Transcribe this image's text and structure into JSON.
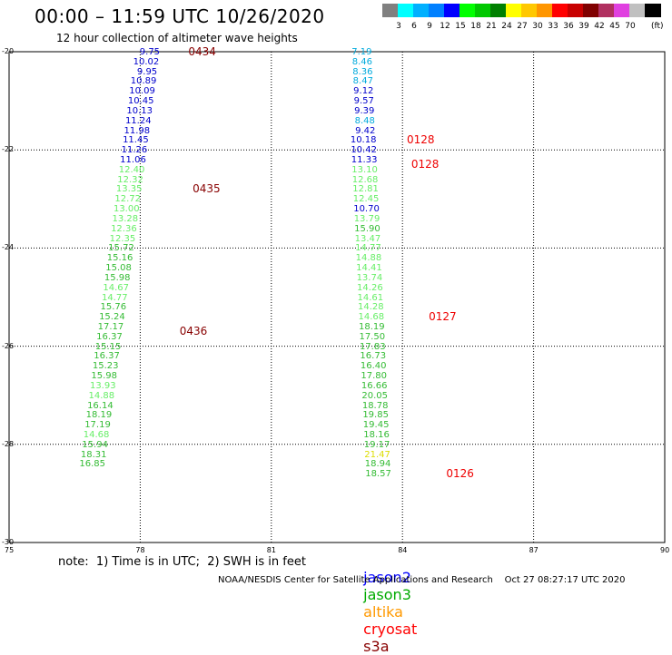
{
  "title": "00:00 – 11:59 UTC 10/26/2020",
  "subtitle": "12 hour collection of altimeter wave heights",
  "legend": {
    "swatches": [
      {
        "color": "#808080",
        "label": ""
      },
      {
        "color": "#00ffff",
        "label": "3"
      },
      {
        "color": "#00b0ff",
        "label": "6"
      },
      {
        "color": "#0080ff",
        "label": "9"
      },
      {
        "color": "#0000ff",
        "label": "12"
      },
      {
        "color": "#00ff00",
        "label": "15"
      },
      {
        "color": "#00c800",
        "label": "18"
      },
      {
        "color": "#008000",
        "label": "21"
      },
      {
        "color": "#ffff00",
        "label": "24"
      },
      {
        "color": "#ffc800",
        "label": "27"
      },
      {
        "color": "#ff9600",
        "label": "30"
      },
      {
        "color": "#ff0000",
        "label": "33"
      },
      {
        "color": "#c80000",
        "label": "36"
      },
      {
        "color": "#800000",
        "label": "39"
      },
      {
        "color": "#b03060",
        "label": "42"
      },
      {
        "color": "#e040e0",
        "label": "45"
      },
      {
        "color": "#c0c0c0",
        "label": "70"
      },
      {
        "color": "#000000",
        "label": ""
      }
    ],
    "unit": "(ft)"
  },
  "axes": {
    "x_ticks": [
      75,
      78,
      81,
      84,
      87,
      90
    ],
    "y_ticks": [
      -20,
      -22,
      -24,
      -26,
      -28,
      -30
    ],
    "x_range": [
      75,
      90
    ],
    "y_range": [
      -30,
      -20
    ],
    "grid": true
  },
  "colors": {
    "track_green": "#33bb33",
    "track_green_light": "#66ee66",
    "track_blue": "#0000cc",
    "track_cyan": "#00aadd",
    "track_yellow": "#dddd00",
    "pass_darkred": "#880000",
    "pass_red": "#ee0000",
    "jason2": "#0000ff",
    "jason3": "#00aa00",
    "altika": "#ff9900",
    "cryosat": "#ff0000",
    "s3a": "#880000"
  },
  "tracks": [
    {
      "name": "track-west",
      "points": [
        {
          "lon": 78.45,
          "lat": -20.0,
          "v": "9.75",
          "c": "#0000cc"
        },
        {
          "lon": 78.42,
          "lat": -20.2,
          "v": "10.02",
          "c": "#0000cc"
        },
        {
          "lon": 78.39,
          "lat": -20.4,
          "v": "9.95",
          "c": "#0000cc"
        },
        {
          "lon": 78.36,
          "lat": -20.6,
          "v": "10.89",
          "c": "#0000cc"
        },
        {
          "lon": 78.33,
          "lat": -20.8,
          "v": "10.09",
          "c": "#0000cc"
        },
        {
          "lon": 78.3,
          "lat": -21.0,
          "v": "10.45",
          "c": "#0000cc"
        },
        {
          "lon": 78.27,
          "lat": -21.2,
          "v": "10.13",
          "c": "#0000cc"
        },
        {
          "lon": 78.24,
          "lat": -21.4,
          "v": "11.24",
          "c": "#0000cc"
        },
        {
          "lon": 78.21,
          "lat": -21.6,
          "v": "11.98",
          "c": "#0000cc"
        },
        {
          "lon": 78.18,
          "lat": -21.8,
          "v": "11.45",
          "c": "#0000cc"
        },
        {
          "lon": 78.15,
          "lat": -22.0,
          "v": "11.26",
          "c": "#0000cc"
        },
        {
          "lon": 78.12,
          "lat": -22.2,
          "v": "11.06",
          "c": "#0000cc"
        },
        {
          "lon": 78.09,
          "lat": -22.4,
          "v": "12.40",
          "c": "#66ee66"
        },
        {
          "lon": 78.06,
          "lat": -22.6,
          "v": "12.32",
          "c": "#66ee66"
        },
        {
          "lon": 78.03,
          "lat": -22.8,
          "v": "13.35",
          "c": "#66ee66"
        },
        {
          "lon": 78.0,
          "lat": -23.0,
          "v": "12.72",
          "c": "#66ee66"
        },
        {
          "lon": 77.97,
          "lat": -23.2,
          "v": "13.00",
          "c": "#66ee66"
        },
        {
          "lon": 77.94,
          "lat": -23.4,
          "v": "13.28",
          "c": "#66ee66"
        },
        {
          "lon": 77.91,
          "lat": -23.6,
          "v": "12.36",
          "c": "#66ee66"
        },
        {
          "lon": 77.88,
          "lat": -23.8,
          "v": "12.35",
          "c": "#66ee66"
        },
        {
          "lon": 77.85,
          "lat": -24.0,
          "v": "15.72",
          "c": "#33bb33"
        },
        {
          "lon": 77.82,
          "lat": -24.2,
          "v": "15.16",
          "c": "#33bb33"
        },
        {
          "lon": 77.79,
          "lat": -24.4,
          "v": "15.08",
          "c": "#33bb33"
        },
        {
          "lon": 77.76,
          "lat": -24.6,
          "v": "15.98",
          "c": "#33bb33"
        },
        {
          "lon": 77.73,
          "lat": -24.8,
          "v": "14.67",
          "c": "#66ee66"
        },
        {
          "lon": 77.7,
          "lat": -25.0,
          "v": "14.77",
          "c": "#66ee66"
        },
        {
          "lon": 77.67,
          "lat": -25.2,
          "v": "15.76",
          "c": "#33bb33"
        },
        {
          "lon": 77.64,
          "lat": -25.4,
          "v": "15.24",
          "c": "#33bb33"
        },
        {
          "lon": 77.61,
          "lat": -25.6,
          "v": "17.17",
          "c": "#33bb33"
        },
        {
          "lon": 77.58,
          "lat": -25.8,
          "v": "16.37",
          "c": "#33bb33"
        },
        {
          "lon": 77.55,
          "lat": -26.0,
          "v": "15.15",
          "c": "#33bb33"
        },
        {
          "lon": 77.52,
          "lat": -26.2,
          "v": "16.37",
          "c": "#33bb33"
        },
        {
          "lon": 77.49,
          "lat": -26.4,
          "v": "15.23",
          "c": "#33bb33"
        },
        {
          "lon": 77.46,
          "lat": -26.6,
          "v": "15.98",
          "c": "#33bb33"
        },
        {
          "lon": 77.43,
          "lat": -26.8,
          "v": "13.93",
          "c": "#66ee66"
        },
        {
          "lon": 77.4,
          "lat": -27.0,
          "v": "14.88",
          "c": "#66ee66"
        },
        {
          "lon": 77.37,
          "lat": -27.2,
          "v": "16.14",
          "c": "#33bb33"
        },
        {
          "lon": 77.34,
          "lat": -27.4,
          "v": "18.19",
          "c": "#33bb33"
        },
        {
          "lon": 77.31,
          "lat": -27.6,
          "v": "17.19",
          "c": "#33bb33"
        },
        {
          "lon": 77.28,
          "lat": -27.8,
          "v": "14.68",
          "c": "#66ee66"
        },
        {
          "lon": 77.25,
          "lat": -28.0,
          "v": "15.94",
          "c": "#33bb33"
        },
        {
          "lon": 77.22,
          "lat": -28.2,
          "v": "18.31",
          "c": "#33bb33"
        },
        {
          "lon": 77.19,
          "lat": -28.4,
          "v": "16.85",
          "c": "#33bb33"
        }
      ]
    },
    {
      "name": "track-east",
      "points": [
        {
          "lon": 83.3,
          "lat": -20.0,
          "v": "7.19",
          "c": "#00aadd"
        },
        {
          "lon": 83.31,
          "lat": -20.2,
          "v": "8.46",
          "c": "#00aadd"
        },
        {
          "lon": 83.32,
          "lat": -20.4,
          "v": "8.36",
          "c": "#00aadd"
        },
        {
          "lon": 83.33,
          "lat": -20.6,
          "v": "8.47",
          "c": "#00aadd"
        },
        {
          "lon": 83.34,
          "lat": -20.8,
          "v": "9.12",
          "c": "#0000cc"
        },
        {
          "lon": 83.35,
          "lat": -21.0,
          "v": "9.57",
          "c": "#0000cc"
        },
        {
          "lon": 83.36,
          "lat": -21.2,
          "v": "9.39",
          "c": "#0000cc"
        },
        {
          "lon": 83.37,
          "lat": -21.4,
          "v": "8.48",
          "c": "#00aadd"
        },
        {
          "lon": 83.38,
          "lat": -21.6,
          "v": "9.42",
          "c": "#0000cc"
        },
        {
          "lon": 83.39,
          "lat": -21.8,
          "v": "10.18",
          "c": "#0000cc"
        },
        {
          "lon": 83.4,
          "lat": -22.0,
          "v": "10.42",
          "c": "#0000cc"
        },
        {
          "lon": 83.41,
          "lat": -22.2,
          "v": "11.33",
          "c": "#0000cc"
        },
        {
          "lon": 83.42,
          "lat": -22.4,
          "v": "13.10",
          "c": "#66ee66"
        },
        {
          "lon": 83.43,
          "lat": -22.6,
          "v": "12.68",
          "c": "#66ee66"
        },
        {
          "lon": 83.44,
          "lat": -22.8,
          "v": "12.81",
          "c": "#66ee66"
        },
        {
          "lon": 83.45,
          "lat": -23.0,
          "v": "12.45",
          "c": "#66ee66"
        },
        {
          "lon": 83.46,
          "lat": -23.2,
          "v": "10.70",
          "c": "#0000cc"
        },
        {
          "lon": 83.47,
          "lat": -23.4,
          "v": "13.79",
          "c": "#66ee66"
        },
        {
          "lon": 83.48,
          "lat": -23.6,
          "v": "15.90",
          "c": "#33bb33"
        },
        {
          "lon": 83.49,
          "lat": -23.8,
          "v": "13.47",
          "c": "#66ee66"
        },
        {
          "lon": 83.5,
          "lat": -24.0,
          "v": "14.77",
          "c": "#66ee66"
        },
        {
          "lon": 83.51,
          "lat": -24.2,
          "v": "14.88",
          "c": "#66ee66"
        },
        {
          "lon": 83.52,
          "lat": -24.4,
          "v": "14.41",
          "c": "#66ee66"
        },
        {
          "lon": 83.53,
          "lat": -24.6,
          "v": "13.74",
          "c": "#66ee66"
        },
        {
          "lon": 83.54,
          "lat": -24.8,
          "v": "14.26",
          "c": "#66ee66"
        },
        {
          "lon": 83.55,
          "lat": -25.0,
          "v": "14.61",
          "c": "#66ee66"
        },
        {
          "lon": 83.56,
          "lat": -25.2,
          "v": "14.28",
          "c": "#66ee66"
        },
        {
          "lon": 83.57,
          "lat": -25.4,
          "v": "14.68",
          "c": "#66ee66"
        },
        {
          "lon": 83.58,
          "lat": -25.6,
          "v": "18.19",
          "c": "#33bb33"
        },
        {
          "lon": 83.59,
          "lat": -25.8,
          "v": "17.50",
          "c": "#33bb33"
        },
        {
          "lon": 83.6,
          "lat": -26.0,
          "v": "17.83",
          "c": "#33bb33"
        },
        {
          "lon": 83.61,
          "lat": -26.2,
          "v": "16.73",
          "c": "#33bb33"
        },
        {
          "lon": 83.62,
          "lat": -26.4,
          "v": "16.40",
          "c": "#33bb33"
        },
        {
          "lon": 83.63,
          "lat": -26.6,
          "v": "17.80",
          "c": "#33bb33"
        },
        {
          "lon": 83.64,
          "lat": -26.8,
          "v": "16.66",
          "c": "#33bb33"
        },
        {
          "lon": 83.65,
          "lat": -27.0,
          "v": "20.05",
          "c": "#33bb33"
        },
        {
          "lon": 83.66,
          "lat": -27.2,
          "v": "18.78",
          "c": "#33bb33"
        },
        {
          "lon": 83.67,
          "lat": -27.4,
          "v": "19.85",
          "c": "#33bb33"
        },
        {
          "lon": 83.68,
          "lat": -27.6,
          "v": "19.45",
          "c": "#33bb33"
        },
        {
          "lon": 83.69,
          "lat": -27.8,
          "v": "18.16",
          "c": "#33bb33"
        },
        {
          "lon": 83.7,
          "lat": -28.0,
          "v": "19.17",
          "c": "#33bb33"
        },
        {
          "lon": 83.71,
          "lat": -28.2,
          "v": "21.47",
          "c": "#dddd00"
        },
        {
          "lon": 83.72,
          "lat": -28.4,
          "v": "18.94",
          "c": "#33bb33"
        },
        {
          "lon": 83.73,
          "lat": -28.6,
          "v": "18.57",
          "c": "#33bb33"
        }
      ]
    }
  ],
  "pass_times": [
    {
      "lon": 79.1,
      "lat": -20.0,
      "text": "0434",
      "c": "#880000"
    },
    {
      "lon": 79.2,
      "lat": -22.8,
      "text": "0435",
      "c": "#880000"
    },
    {
      "lon": 78.9,
      "lat": -25.7,
      "text": "0436",
      "c": "#880000"
    },
    {
      "lon": 84.1,
      "lat": -21.8,
      "text": "0128",
      "c": "#ee0000"
    },
    {
      "lon": 84.2,
      "lat": -22.3,
      "text": "0128",
      "c": "#ee0000"
    },
    {
      "lon": 84.6,
      "lat": -25.4,
      "text": "0127",
      "c": "#ee0000"
    },
    {
      "lon": 85.0,
      "lat": -28.6,
      "text": "0126",
      "c": "#ee0000"
    }
  ],
  "note": "note:  1) Time is in UTC;  2) SWH is in feet",
  "satellites": {
    "jason2": "jason2",
    "jason3": "jason3",
    "altika": "altika",
    "cryosat": "cryosat",
    "s3a": "s3a"
  },
  "footer": "NOAA/NESDIS Center for Satellite Applications and Research    Oct 27 08:27:17 UTC 2020"
}
